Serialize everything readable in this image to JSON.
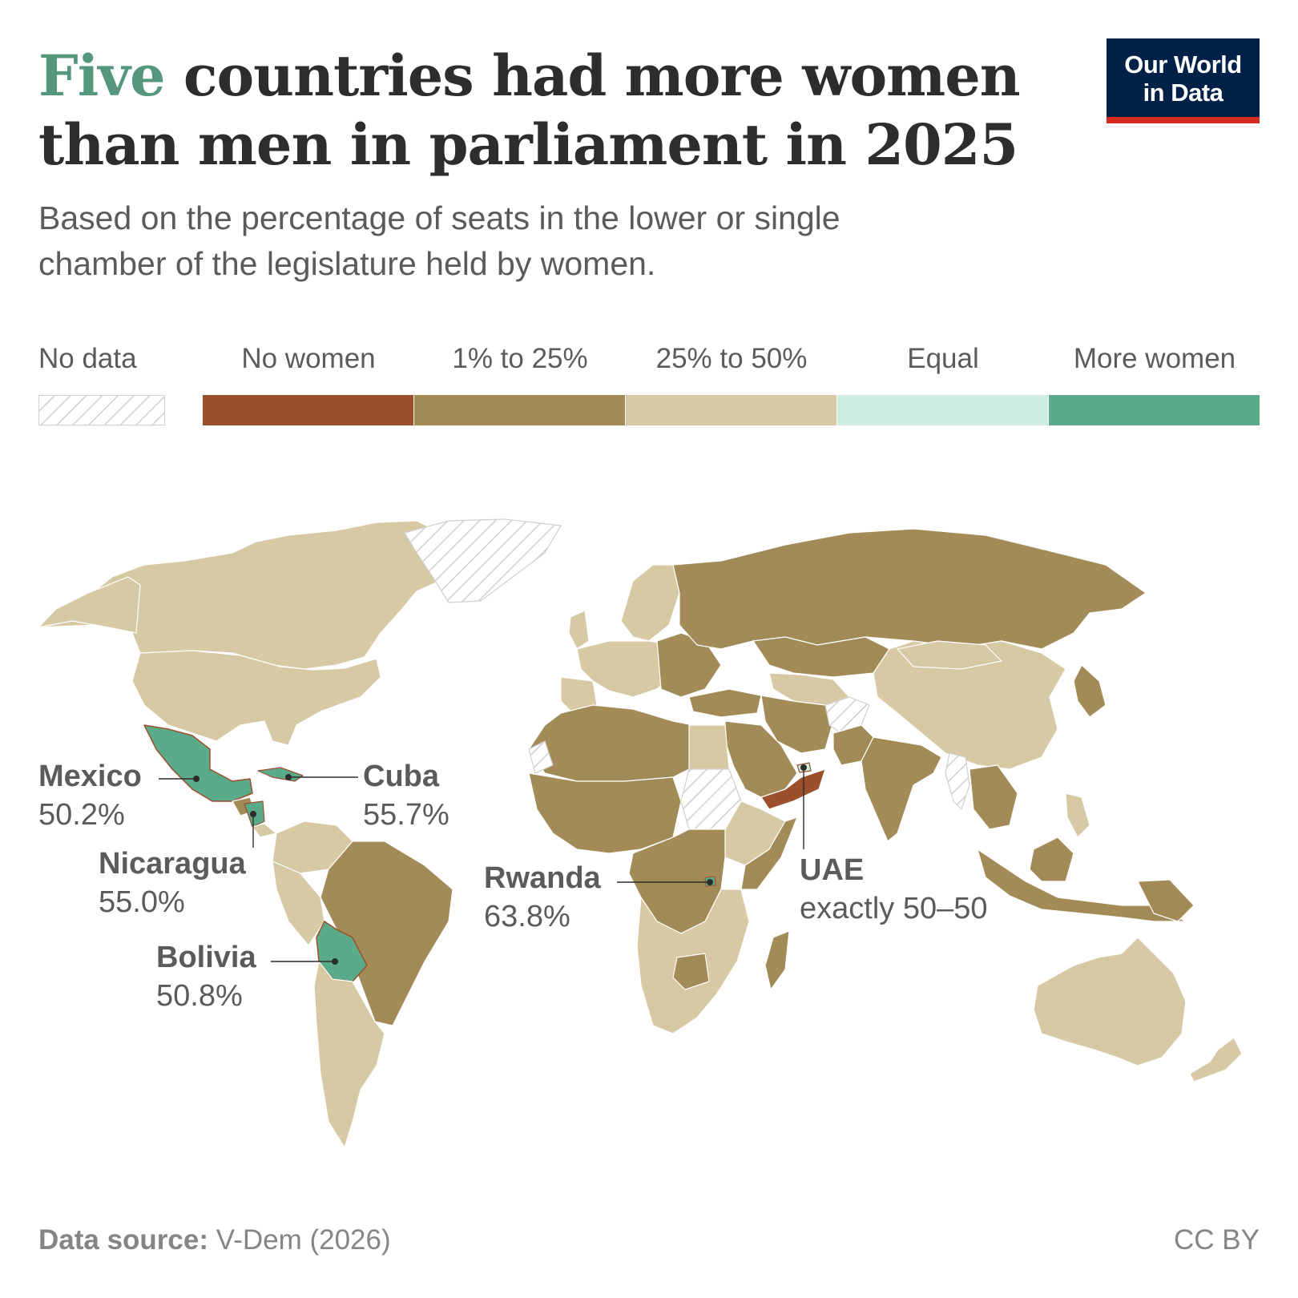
{
  "header": {
    "title_highlight": "Five",
    "title_rest": " countries had more women than men in parliament in 2025",
    "subtitle": "Based on the percentage of seats in the lower or single chamber of the legislature held by women.",
    "logo_line1": "Our World",
    "logo_line2": "in Data"
  },
  "legend": {
    "no_data_label": "No data",
    "bins": [
      {
        "label": "No women",
        "color": "#9c4f2b"
      },
      {
        "label": "1% to 25%",
        "color": "#a38b58"
      },
      {
        "label": "25% to 50%",
        "color": "#d8c9a5"
      },
      {
        "label": "Equal",
        "color": "#cdece0"
      },
      {
        "label": "More women",
        "color": "#5aab8a"
      }
    ]
  },
  "annotations": {
    "mexico": {
      "name": "Mexico",
      "value": "50.2%"
    },
    "cuba": {
      "name": "Cuba",
      "value": "55.7%"
    },
    "nicaragua": {
      "name": "Nicaragua",
      "value": "55.0%"
    },
    "bolivia": {
      "name": "Bolivia",
      "value": "50.8%"
    },
    "rwanda": {
      "name": "Rwanda",
      "value": "63.8%"
    },
    "uae": {
      "name": "UAE",
      "value": "exactly 50–50"
    }
  },
  "footer": {
    "source_label": "Data source:",
    "source_value": " V-Dem (2026)",
    "license": "CC BY"
  },
  "colors": {
    "highlight": "#54977b",
    "no_women": "#9c4f2b",
    "low": "#a38b58",
    "mid": "#d8c9a5",
    "equal": "#cdece0",
    "more_women": "#5aab8a",
    "logo_bg": "#002147",
    "logo_accent": "#d42b21"
  }
}
